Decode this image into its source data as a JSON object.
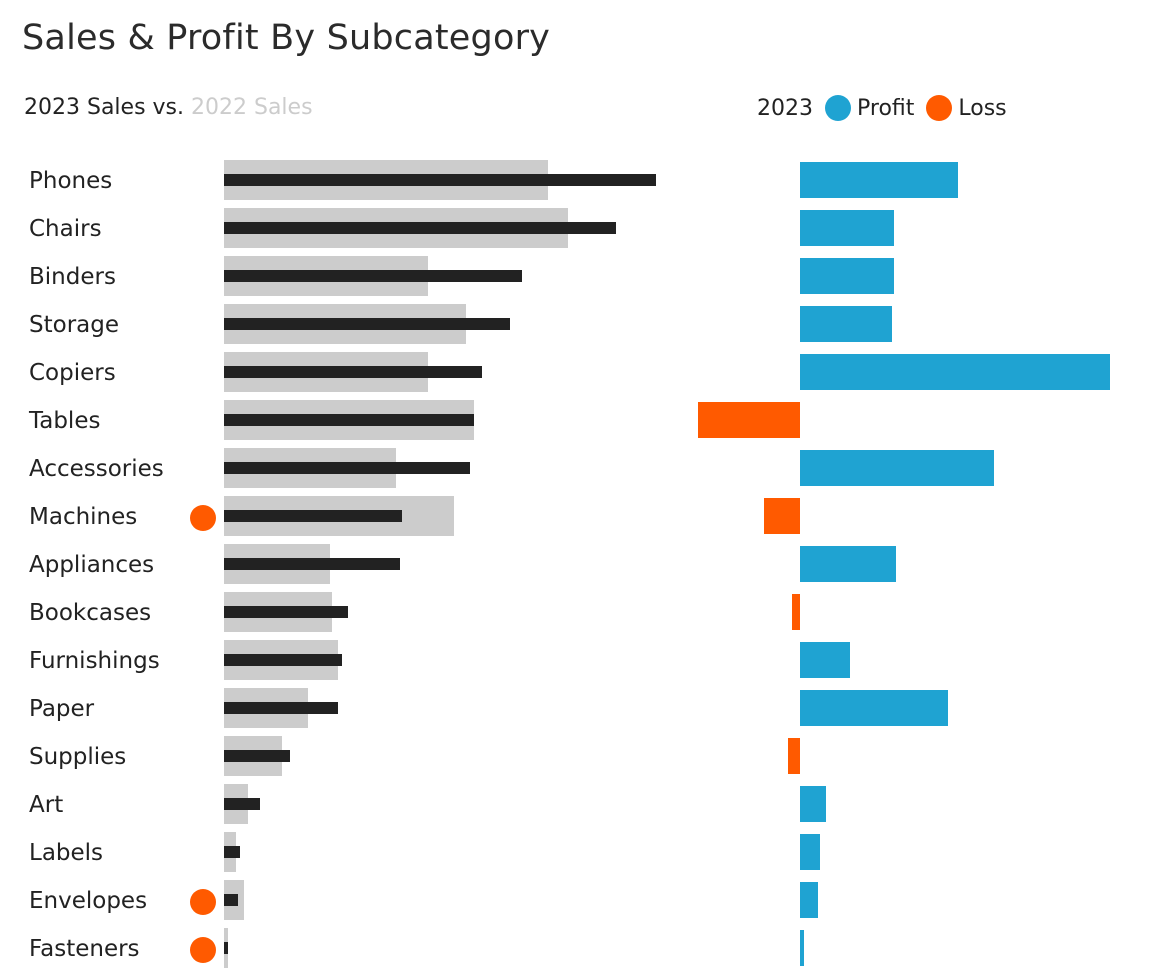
{
  "chart_data": {
    "title": "Sales & Profit By Subcategory",
    "panels": [
      {
        "type": "bar",
        "orientation": "horizontal",
        "title_parts": [
          "2023 Sales vs. ",
          "2022 Sales"
        ],
        "series": [
          {
            "name": "2022 Sales",
            "color": "#cccccc",
            "values": [
              324,
              344,
              204,
              242,
              204,
              250,
              172,
              230,
              106,
              108,
              114,
              84,
              58,
              24,
              12,
              20,
              4
            ]
          },
          {
            "name": "2023 Sales",
            "color": "#222222",
            "values": [
              432,
              392,
              298,
              286,
              258,
              250,
              246,
              178,
              176,
              124,
              118,
              114,
              66,
              36,
              16,
              14,
              4
            ]
          }
        ],
        "markers": {
          "color": "#ff5a00",
          "categories": [
            "Machines",
            "Envelopes",
            "Fasteners"
          ]
        }
      },
      {
        "type": "bar",
        "orientation": "horizontal",
        "title": "2023",
        "legend": [
          {
            "name": "Profit",
            "color": "#1fa3d2"
          },
          {
            "name": "Loss",
            "color": "#ff5a00"
          }
        ],
        "legend_placement": "top",
        "values": [
          158,
          94,
          94,
          92,
          310,
          -102,
          194,
          -36,
          96,
          -8,
          50,
          148,
          -12,
          26,
          20,
          18,
          4
        ]
      }
    ],
    "categories": [
      "Phones",
      "Chairs",
      "Binders",
      "Storage",
      "Copiers",
      "Tables",
      "Accessories",
      "Machines",
      "Appliances",
      "Bookcases",
      "Furnishings",
      "Paper",
      "Supplies",
      "Art",
      "Labels",
      "Envelopes",
      "Fasteners"
    ],
    "grid": false
  }
}
